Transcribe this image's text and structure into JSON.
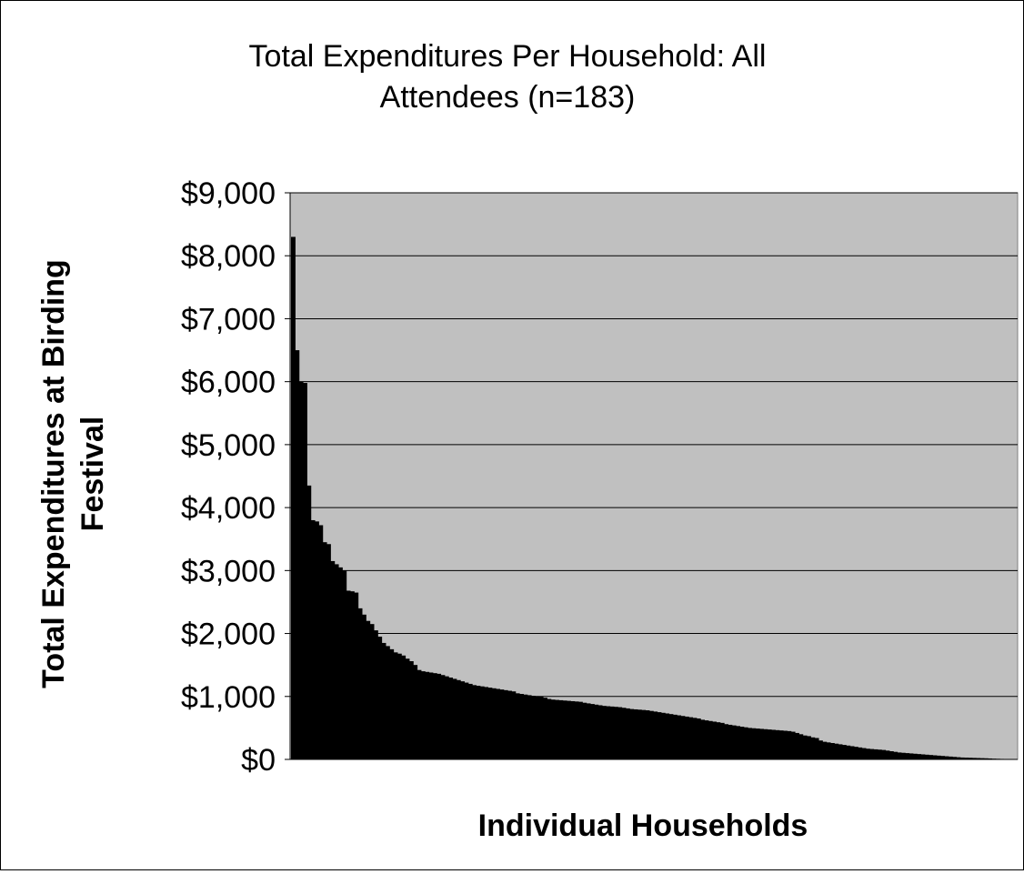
{
  "chart_data": {
    "type": "bar",
    "title_lines": [
      "Total Expenditures Per Household: All",
      "Attendees (n=183)"
    ],
    "xlabel": "Individual Households",
    "ylabel_lines": [
      "Total Expenditures at Birding",
      "Festival"
    ],
    "ylim": [
      0,
      9000
    ],
    "y_ticks": [
      0,
      1000,
      2000,
      3000,
      4000,
      5000,
      6000,
      7000,
      8000,
      9000
    ],
    "y_tick_labels": [
      "$0",
      "$1,000",
      "$2,000",
      "$3,000",
      "$4,000",
      "$5,000",
      "$6,000",
      "$7,000",
      "$8,000",
      "$9,000"
    ],
    "grid": true,
    "legend": "none",
    "n": 183,
    "sorted": "descending",
    "values": [
      8300,
      6500,
      6000,
      5980,
      4350,
      3800,
      3780,
      3720,
      3450,
      3420,
      3150,
      3100,
      3050,
      3000,
      2680,
      2670,
      2650,
      2400,
      2300,
      2200,
      2150,
      2050,
      1950,
      1850,
      1800,
      1750,
      1700,
      1680,
      1650,
      1600,
      1560,
      1500,
      1420,
      1400,
      1390,
      1380,
      1370,
      1360,
      1340,
      1320,
      1300,
      1280,
      1260,
      1240,
      1220,
      1200,
      1180,
      1170,
      1160,
      1150,
      1140,
      1130,
      1120,
      1110,
      1100,
      1090,
      1080,
      1050,
      1040,
      1030,
      1020,
      1010,
      1005,
      1000,
      980,
      960,
      950,
      945,
      940,
      935,
      930,
      925,
      920,
      915,
      900,
      890,
      880,
      870,
      860,
      850,
      845,
      840,
      835,
      830,
      820,
      810,
      800,
      795,
      790,
      785,
      780,
      770,
      760,
      750,
      740,
      730,
      720,
      710,
      700,
      690,
      680,
      670,
      660,
      650,
      630,
      620,
      610,
      600,
      590,
      580,
      560,
      550,
      540,
      530,
      520,
      510,
      500,
      495,
      490,
      485,
      480,
      475,
      470,
      465,
      460,
      455,
      450,
      440,
      420,
      400,
      380,
      370,
      350,
      340,
      300,
      280,
      270,
      260,
      250,
      240,
      230,
      220,
      210,
      200,
      190,
      180,
      170,
      165,
      160,
      155,
      150,
      140,
      130,
      120,
      110,
      105,
      100,
      95,
      90,
      85,
      80,
      75,
      70,
      65,
      60,
      55,
      50,
      45,
      40,
      35,
      30,
      28,
      26,
      24,
      22,
      20,
      18,
      15,
      12,
      10,
      8,
      5,
      3
    ],
    "colors": {
      "plot_background": "#c0c0c0",
      "bars": "#000000",
      "gridlines": "#000000",
      "page_background": "#ffffff"
    }
  }
}
